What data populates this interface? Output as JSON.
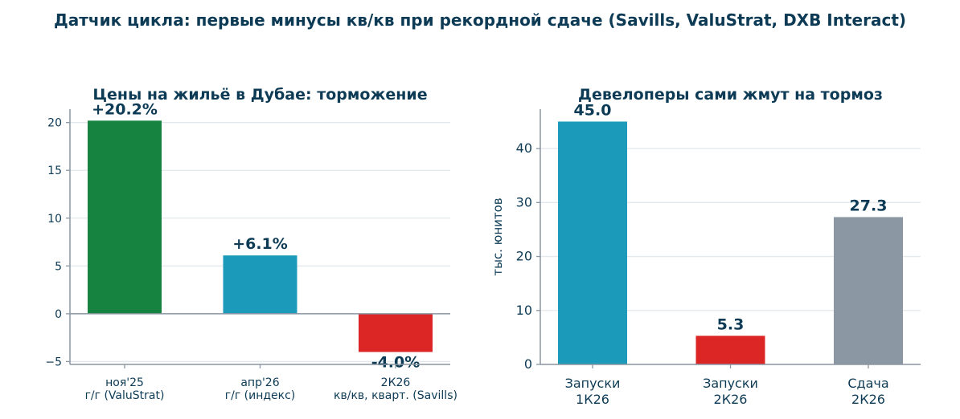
{
  "title": "Датчик цикла: первые минусы кв/кв при рекордной сдаче (Savills, ValuStrat, DXB Interact)",
  "chart_data": [
    {
      "type": "bar",
      "title": "Цены на жильё в Дубае: торможение",
      "categories": [
        [
          "ноя'25",
          "г/г (ValuStrat)"
        ],
        [
          "апр'26",
          "г/г (индекс)"
        ],
        [
          "2К26",
          "кв/кв, кварт. (Savills)"
        ]
      ],
      "values": [
        20.2,
        6.1,
        -4.0
      ],
      "value_labels": [
        "+20.2%",
        "+6.1%",
        "-4.0%"
      ],
      "colors": [
        "#178340",
        "#1b9ab9",
        "#dc2626"
      ],
      "xlabel": "",
      "ylabel": "",
      "ylim": [
        -5.3,
        21.4
      ],
      "yticks": [
        -5,
        0,
        5,
        10,
        15,
        20
      ],
      "ytick_labels": [
        "−5",
        "0",
        "5",
        "10",
        "15",
        "20"
      ],
      "grid": "y",
      "zero_line": true
    },
    {
      "type": "bar",
      "title": "Девелоперы сами жмут на тормоз",
      "categories": [
        [
          "Запуски",
          "1К26"
        ],
        [
          "Запуски",
          "2К26"
        ],
        [
          "Сдача",
          "2К26"
        ]
      ],
      "values": [
        45.0,
        5.3,
        27.3
      ],
      "value_labels": [
        "45.0",
        "5.3",
        "27.3"
      ],
      "colors": [
        "#1b9ab9",
        "#dc2626",
        "#8b97a2"
      ],
      "xlabel": "",
      "ylabel": "тыс. юнитов",
      "ylim": [
        0,
        47.3
      ],
      "yticks": [
        0,
        10,
        20,
        30,
        40
      ],
      "ytick_labels": [
        "0",
        "10",
        "20",
        "30",
        "40"
      ],
      "grid": "y",
      "zero_line": false
    }
  ]
}
